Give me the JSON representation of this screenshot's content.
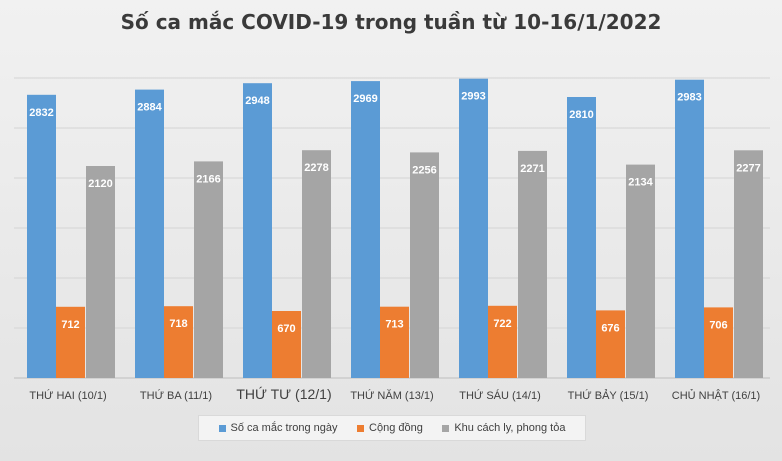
{
  "chart_data": {
    "type": "bar",
    "title": "Số ca mắc COVID-19 trong tuần từ 10-16/1/2022",
    "categories": [
      "THỨ HAI (10/1)",
      "THỨ BA (11/1)",
      "THỨ TƯ (12/1)",
      "THỨ NĂM (13/1)",
      "THỨ SÁU (14/1)",
      "THỨ BẢY (15/1)",
      "CHỦ NHẬT (16/1)"
    ],
    "series": [
      {
        "name": "Số ca mắc trong ngày",
        "color": "#5b9bd5",
        "values": [
          2832,
          2884,
          2948,
          2969,
          2993,
          2810,
          2983
        ]
      },
      {
        "name": "Cộng đồng",
        "color": "#ed7d31",
        "values": [
          712,
          718,
          670,
          713,
          722,
          676,
          706
        ]
      },
      {
        "name": "Khu cách ly, phong tỏa",
        "color": "#a5a5a5",
        "values": [
          2120,
          2166,
          2278,
          2256,
          2271,
          2134,
          2277
        ]
      }
    ],
    "ylim": [
      0,
      3000
    ],
    "grid": true,
    "legend_position": "bottom"
  }
}
